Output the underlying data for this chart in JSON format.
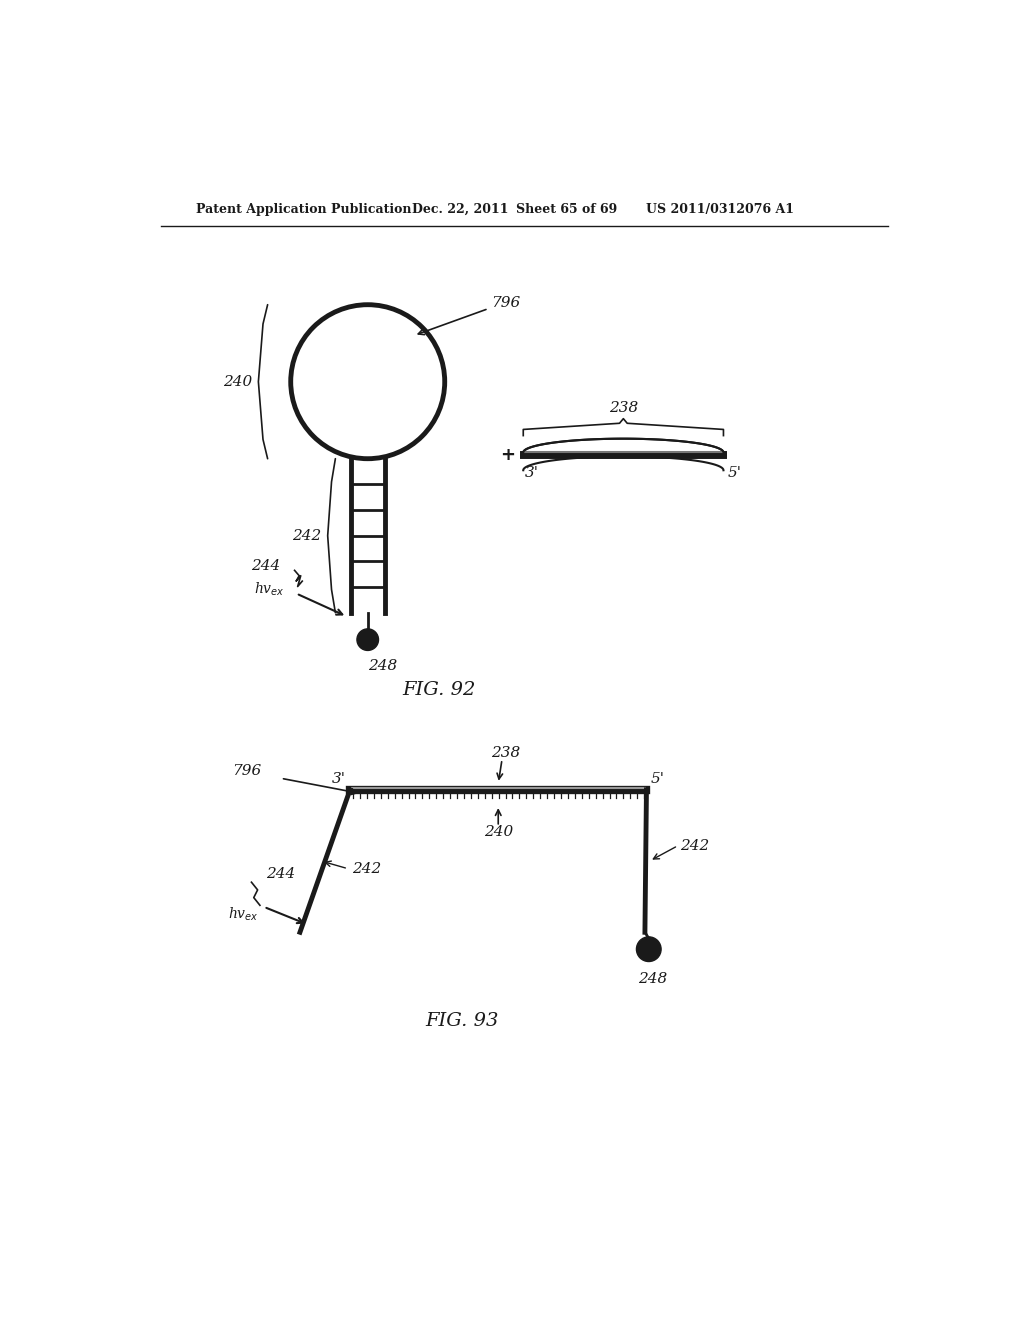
{
  "bg_color": "#ffffff",
  "line_color": "#1a1a1a",
  "header_text": "Patent Application Publication",
  "header_date": "Dec. 22, 2011",
  "header_sheet": "Sheet 65 of 69",
  "header_patent": "US 2011/0312076 A1",
  "fig92_label": "FIG. 92",
  "fig93_label": "FIG. 93"
}
